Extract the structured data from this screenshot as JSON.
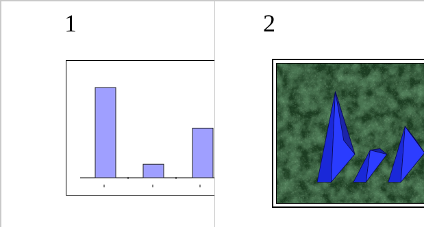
{
  "cells": [
    {
      "number": "1"
    },
    {
      "number": "2"
    }
  ],
  "chart_data": {
    "type": "bar",
    "title": "",
    "xlabel": "",
    "ylabel": "",
    "categories": [
      "",
      "",
      ""
    ],
    "values": [
      100,
      15,
      55
    ],
    "ylim": [
      0,
      100
    ],
    "grid": false,
    "colors": {
      "bar_fill": "#9f9fff",
      "bar_stroke": "#222222"
    }
  },
  "picture": {
    "description_icon": "blue-pyramids-on-green-marble-icon",
    "background_color": "#1b3d20",
    "shape_color": "#1f2ff0"
  }
}
